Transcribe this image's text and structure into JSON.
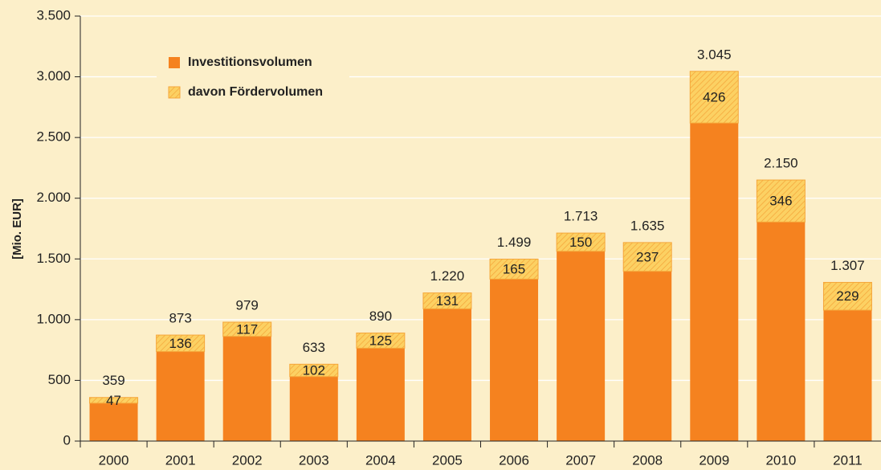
{
  "chart_data": {
    "type": "bar",
    "y_label": "[Mio. EUR]",
    "categories": [
      "2000",
      "2001",
      "2002",
      "2003",
      "2004",
      "2005",
      "2006",
      "2007",
      "2008",
      "2009",
      "2010",
      "2011"
    ],
    "series": [
      {
        "name": "Investitionsvolumen",
        "color": "#f5821f",
        "values": [
          359,
          873,
          979,
          633,
          890,
          1220,
          1499,
          1713,
          1635,
          3045,
          2150,
          1307
        ],
        "value_labels": [
          "359",
          "873",
          "979",
          "633",
          "890",
          "1.220",
          "1.499",
          "1.713",
          "1.635",
          "3.045",
          "2.150",
          "1.307"
        ]
      },
      {
        "name": "davon Fördervolumen",
        "color": "#fcd163",
        "values": [
          47,
          136,
          117,
          102,
          125,
          131,
          165,
          150,
          237,
          426,
          346,
          229
        ]
      }
    ],
    "ylim": [
      0,
      3500
    ],
    "yticks": [
      0,
      500,
      {
        "value": 1000,
        "label": "1.000"
      },
      {
        "value": 1500,
        "label": "1.500"
      },
      {
        "value": 2000,
        "label": "2.000"
      },
      {
        "value": 2500,
        "label": "2.500"
      },
      {
        "value": 3000,
        "label": "3.000"
      },
      {
        "value": 3500,
        "label": "3.500"
      }
    ],
    "grid": true
  }
}
